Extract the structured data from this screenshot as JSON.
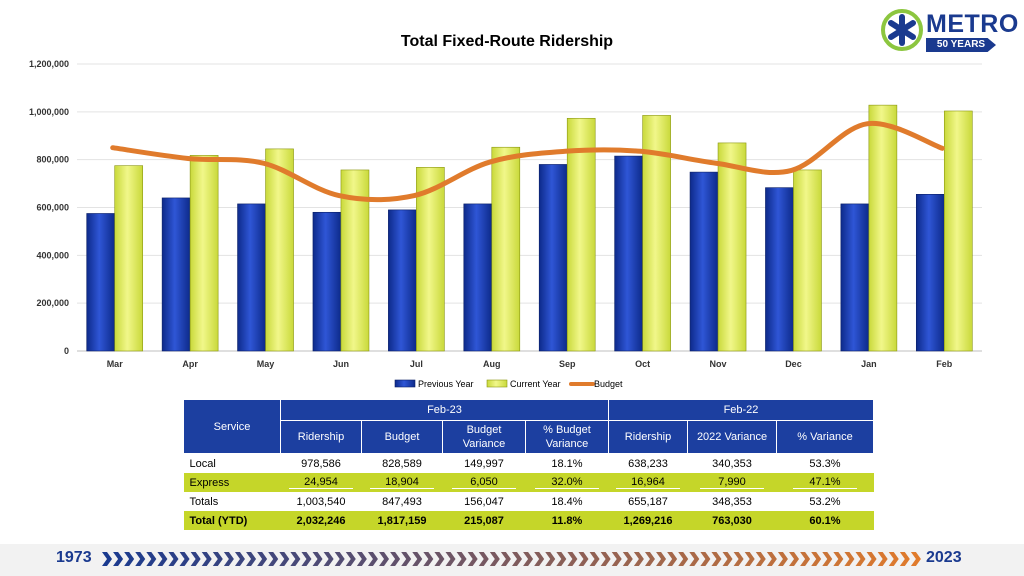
{
  "chart_data": {
    "type": "bar",
    "title": "Total Fixed-Route Ridership",
    "categories": [
      "Mar",
      "Apr",
      "May",
      "Jun",
      "Jul",
      "Aug",
      "Sep",
      "Oct",
      "Nov",
      "Dec",
      "Jan",
      "Feb"
    ],
    "series": [
      {
        "name": "Previous Year",
        "type": "bar",
        "color": "#1c3fb5",
        "values": [
          575000,
          640000,
          615000,
          580000,
          590000,
          615000,
          780000,
          815000,
          748000,
          683000,
          615000,
          655187
        ]
      },
      {
        "name": "Current Year",
        "type": "bar",
        "color": "#e4f06a",
        "values": [
          775000,
          818000,
          845000,
          757000,
          768000,
          852000,
          973000,
          985000,
          870000,
          757000,
          1028000,
          1003540
        ]
      },
      {
        "name": "Budget",
        "type": "line",
        "color": "#e07b2c",
        "values": [
          850000,
          805000,
          785000,
          650000,
          650000,
          790000,
          835000,
          835000,
          785000,
          755000,
          950000,
          847493
        ]
      }
    ],
    "ylim": [
      0,
      1200000
    ],
    "yticks": [
      0,
      200000,
      400000,
      600000,
      800000,
      1000000,
      1200000
    ],
    "ytick_labels": [
      "0",
      "200,000",
      "400,000",
      "600,000",
      "800,000",
      "1,000,000",
      "1,200,000"
    ],
    "grid": true,
    "legend_position": "bottom"
  },
  "logo": {
    "name": "METRO",
    "tagline": "50 YEARS"
  },
  "table": {
    "service_header": "Service",
    "group_current": "Feb-23",
    "group_previous": "Feb-22",
    "columns": [
      "Ridership",
      "Budget",
      "Budget Variance",
      "% Budget Variance",
      "Ridership",
      "2022 Variance",
      "% Variance"
    ],
    "rows": [
      {
        "label": "Local",
        "values": [
          "978,586",
          "828,589",
          "149,997",
          "18.1%",
          "638,233",
          "340,353",
          "53.3%"
        ]
      },
      {
        "label": "Express",
        "values": [
          "24,954",
          "18,904",
          "6,050",
          "32.0%",
          "16,964",
          "7,990",
          "47.1%"
        ]
      },
      {
        "label": "Totals",
        "values": [
          "1,003,540",
          "847,493",
          "156,047",
          "18.4%",
          "655,187",
          "348,353",
          "53.2%"
        ]
      },
      {
        "label": "Total (YTD)",
        "values": [
          "2,032,246",
          "1,817,159",
          "215,087",
          "11.8%",
          "1,269,216",
          "763,030",
          "60.1%"
        ]
      }
    ]
  },
  "footer": {
    "start_year": "1973",
    "end_year": "2023"
  },
  "colors": {
    "navy": "#1c3fa0",
    "accent_green": "#c5d629",
    "orange": "#e07b2c",
    "logo_green": "#8cc63f"
  }
}
